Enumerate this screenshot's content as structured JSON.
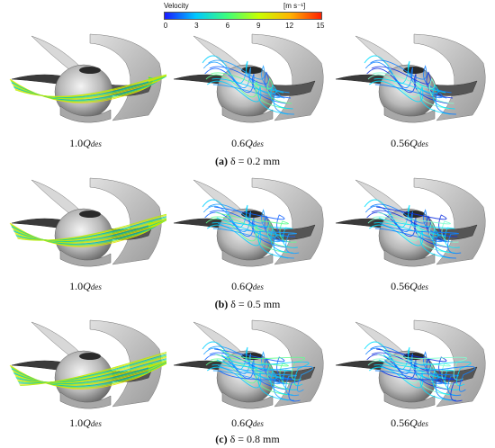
{
  "colorbar": {
    "title": "Velocity",
    "unit": "[m s⁻¹]",
    "ticks": [
      "0",
      "3",
      "6",
      "9",
      "12",
      "15"
    ],
    "colors": [
      "#1a1aff",
      "#00c8ff",
      "#3dff7a",
      "#c8ff00",
      "#ffb400",
      "#ff2000"
    ]
  },
  "rows": [
    {
      "label_letter": "(a)",
      "label_text": " δ = 0.2 mm",
      "cases": [
        {
          "coef": "1.0",
          "sub": "des"
        },
        {
          "coef": "0.6",
          "sub": "des"
        },
        {
          "coef": "0.56",
          "sub": "des"
        }
      ]
    },
    {
      "label_letter": "(b)",
      "label_text": " δ = 0.5 mm",
      "cases": [
        {
          "coef": "1.0",
          "sub": "des"
        },
        {
          "coef": "0.6",
          "sub": "des"
        },
        {
          "coef": "0.56",
          "sub": "des"
        }
      ]
    },
    {
      "label_letter": "(c)",
      "label_text": " δ = 0.8 mm",
      "cases": [
        {
          "coef": "1.0",
          "sub": "des"
        },
        {
          "coef": "0.6",
          "sub": "des"
        },
        {
          "coef": "0.56",
          "sub": "des"
        }
      ]
    }
  ]
}
